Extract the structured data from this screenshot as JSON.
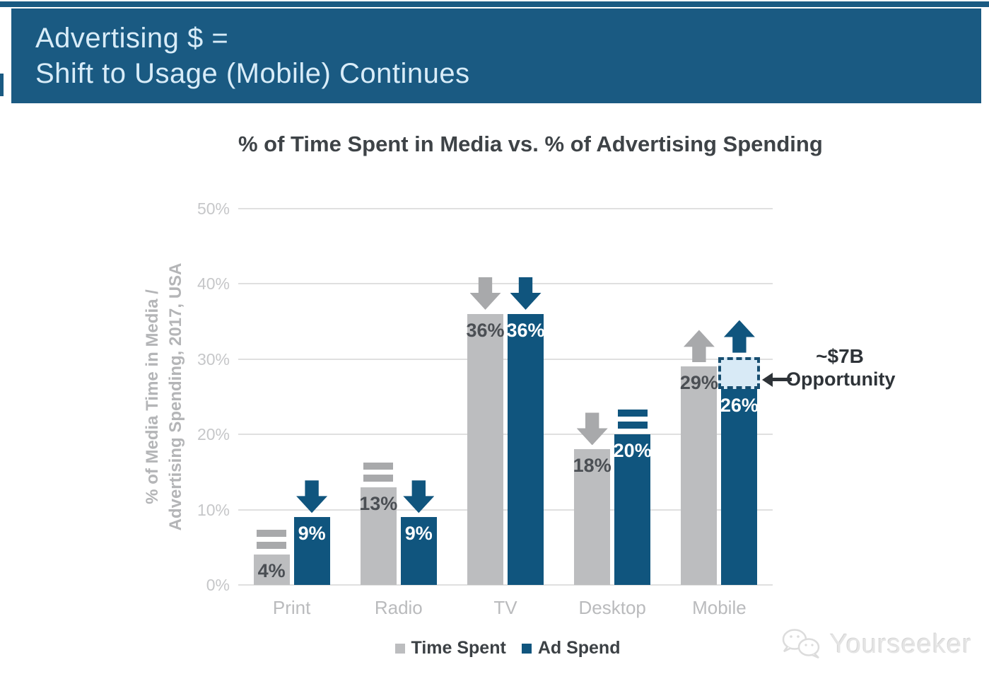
{
  "header": {
    "line1": "Advertising $ =",
    "line2": "Shift to Usage (Mobile) Continues",
    "bg_color": "#1a5a82",
    "text_color": "#d8ecf8"
  },
  "chart_data": {
    "type": "bar",
    "title": "% of Time Spent in Media vs. % of Advertising Spending",
    "ylabel_line1": "% of Media Time in Media /",
    "ylabel_line2": "Advertising Spending, 2017, USA",
    "categories": [
      "Print",
      "Radio",
      "TV",
      "Desktop",
      "Mobile"
    ],
    "series": [
      {
        "name": "Time Spent",
        "color": "#bcbdbf",
        "trend_color": "#a8a9ab",
        "label_color": "#4b4f54",
        "values": [
          4,
          13,
          36,
          18,
          29
        ],
        "labels": [
          "4%",
          "13%",
          "36%",
          "18%",
          "29%"
        ],
        "trends": [
          "flat",
          "flat",
          "down",
          "down",
          "up"
        ]
      },
      {
        "name": "Ad Spend",
        "color": "#10557e",
        "trend_color": "#10557e",
        "label_color": "#ffffff",
        "values": [
          9,
          9,
          36,
          20,
          26
        ],
        "labels": [
          "9%",
          "9%",
          "36%",
          "20%",
          "26%"
        ],
        "trends": [
          "down",
          "down",
          "down",
          "flat",
          "up"
        ]
      }
    ],
    "yticks": [
      "0%",
      "10%",
      "20%",
      "30%",
      "40%",
      "50%"
    ],
    "ylim": [
      0,
      50
    ],
    "grid": true,
    "legend_position": "bottom",
    "annotation": {
      "line1": "~$7B",
      "line2": "Opportunity",
      "target_category": "Mobile",
      "target_series": "Ad Spend",
      "box_bottom_pct": 26,
      "box_top_pct": 30.3,
      "box_fill": "#d8eaf6",
      "box_border": "#174e70"
    }
  },
  "legend": {
    "items": [
      {
        "label": "Time Spent",
        "color": "#bcbdbf"
      },
      {
        "label": "Ad Spend",
        "color": "#10557e"
      }
    ]
  },
  "watermark": {
    "text": "Yourseeker",
    "icon": "wechat-icon"
  }
}
